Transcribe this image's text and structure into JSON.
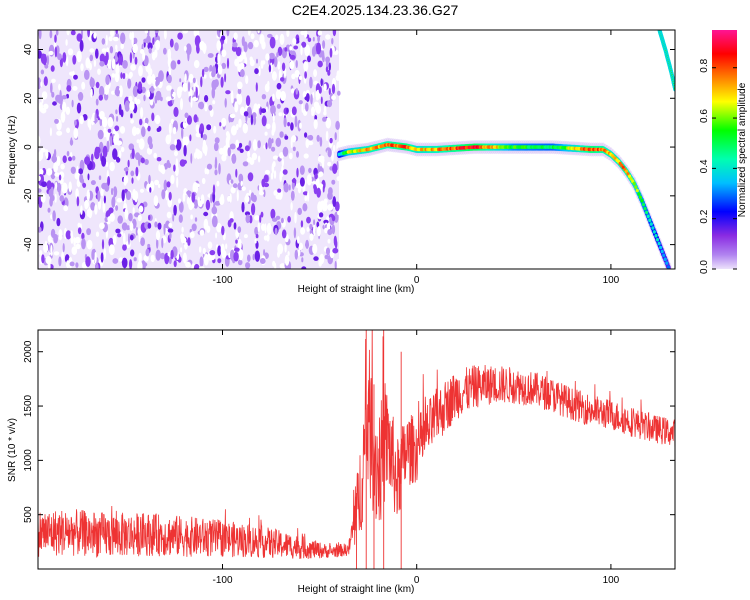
{
  "figure": {
    "title": "C2E4.2025.134.23.36.G27"
  },
  "colors": {
    "noise": "#7a2ff0",
    "snr_line": "#ee3333",
    "colorbar": [
      "#d9c8f7",
      "#8a2be2",
      "#0000ff",
      "#00ffff",
      "#00ff00",
      "#ffff00",
      "#ff8000",
      "#ff0000",
      "#ff1493"
    ]
  },
  "chart_data": [
    {
      "type": "heatmap",
      "title": "",
      "xlabel": "Height of straight line (km)",
      "ylabel": "Frequency (Hz)",
      "xlim": [
        -195,
        133
      ],
      "ylim": [
        -50,
        48
      ],
      "xticks": [
        {
          "v": -100,
          "t": "-100"
        },
        {
          "v": 0,
          "t": "0"
        },
        {
          "v": 100,
          "t": "100"
        }
      ],
      "yticks": [
        {
          "v": -40,
          "t": "-40"
        },
        {
          "v": -20,
          "t": "-20"
        },
        {
          "v": 0,
          "t": "0"
        },
        {
          "v": 20,
          "t": "20"
        },
        {
          "v": 40,
          "t": "40"
        }
      ],
      "noise_region_x": [
        -195,
        -40
      ],
      "ridge_x": [
        -40,
        -35,
        -25,
        -15,
        -5,
        0,
        10,
        30,
        50,
        70,
        90,
        96,
        100,
        104,
        108,
        112,
        116,
        120,
        125,
        128,
        130
      ],
      "ridge_y": [
        -3,
        -2,
        -1,
        1,
        0,
        -1,
        -1,
        0,
        0,
        0,
        -1,
        -1,
        -3,
        -6,
        -10,
        -15,
        -22,
        -30,
        -40,
        -46,
        -50
      ],
      "ridge_amp": [
        0.4,
        0.7,
        0.8,
        0.85,
        0.9,
        0.75,
        0.8,
        0.95,
        0.6,
        0.55,
        0.9,
        0.85,
        0.8,
        0.8,
        0.85,
        0.7,
        0.6,
        0.5,
        0.4,
        0.35,
        0.3
      ],
      "secondary_ridge_x": [
        125,
        128,
        131,
        133
      ],
      "secondary_ridge_y": [
        48,
        40,
        31,
        24
      ],
      "colorbar": {
        "label": "Normalized spectral amplitude",
        "range": [
          0,
          0.95
        ],
        "ticks": [
          {
            "v": 0.0,
            "t": "0.0"
          },
          {
            "v": 0.2,
            "t": "0.2"
          },
          {
            "v": 0.4,
            "t": "0.4"
          },
          {
            "v": 0.6,
            "t": "0.6"
          },
          {
            "v": 0.8,
            "t": "0.8"
          }
        ]
      }
    },
    {
      "type": "line",
      "title": "",
      "xlabel": "Height of straight line (km)",
      "ylabel": "SNR (10 * v/v)",
      "xlim": [
        -195,
        133
      ],
      "ylim": [
        0,
        2200
      ],
      "xticks": [
        {
          "v": -100,
          "t": "-100"
        },
        {
          "v": 0,
          "t": "0"
        },
        {
          "v": 100,
          "t": "100"
        }
      ],
      "yticks": [
        {
          "v": 500,
          "t": "500"
        },
        {
          "v": 1000,
          "t": "1000"
        },
        {
          "v": 1500,
          "t": "1500"
        },
        {
          "v": 2000,
          "t": "2000"
        }
      ],
      "series": [
        {
          "x": [
            -195,
            -180,
            -160,
            -140,
            -120,
            -100,
            -80,
            -60,
            -45,
            -35,
            -30,
            -25,
            -20,
            -15,
            -10,
            -5,
            0,
            10,
            20,
            30,
            40,
            50,
            60,
            70,
            80,
            90,
            100,
            110,
            120,
            133
          ],
          "y": [
            330,
            340,
            310,
            320,
            300,
            280,
            250,
            200,
            160,
            180,
            600,
            1400,
            900,
            1200,
            800,
            1100,
            1100,
            1400,
            1600,
            1680,
            1700,
            1690,
            1660,
            1600,
            1520,
            1460,
            1420,
            1360,
            1300,
            1250
          ],
          "noise_amp": [
            220,
            220,
            210,
            200,
            190,
            170,
            150,
            110,
            60,
            60,
            400,
            700,
            600,
            500,
            400,
            350,
            300,
            260,
            230,
            200,
            180,
            170,
            160,
            160,
            150,
            150,
            140,
            140,
            130,
            130
          ]
        }
      ]
    }
  ]
}
